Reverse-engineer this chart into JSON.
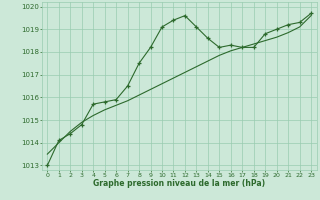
{
  "x": [
    0,
    1,
    2,
    3,
    4,
    5,
    6,
    7,
    8,
    9,
    10,
    11,
    12,
    13,
    14,
    15,
    16,
    17,
    18,
    19,
    20,
    21,
    22,
    23
  ],
  "y_main": [
    1013.0,
    1014.1,
    1014.4,
    1014.8,
    1015.7,
    1015.8,
    1015.9,
    1016.5,
    1017.5,
    1018.2,
    1019.1,
    1019.4,
    1019.6,
    1019.1,
    1018.6,
    1018.2,
    1018.3,
    1018.2,
    1018.2,
    1018.8,
    1019.0,
    1019.2,
    1019.3,
    1019.7
  ],
  "y_smooth": [
    1013.5,
    1014.0,
    1014.5,
    1014.9,
    1015.2,
    1015.45,
    1015.65,
    1015.85,
    1016.1,
    1016.35,
    1016.6,
    1016.85,
    1017.1,
    1017.35,
    1017.6,
    1017.85,
    1018.05,
    1018.2,
    1018.35,
    1018.5,
    1018.65,
    1018.85,
    1019.1,
    1019.6
  ],
  "line_color": "#2d6a2d",
  "bg_color": "#cce8d8",
  "grid_color": "#99ccb0",
  "xlabel": "Graphe pression niveau de la mer (hPa)",
  "ylim": [
    1013.0,
    1020.0
  ],
  "xlim": [
    0,
    23
  ],
  "yticks": [
    1013,
    1014,
    1015,
    1016,
    1017,
    1018,
    1019,
    1020
  ],
  "xticks": [
    0,
    1,
    2,
    3,
    4,
    5,
    6,
    7,
    8,
    9,
    10,
    11,
    12,
    13,
    14,
    15,
    16,
    17,
    18,
    19,
    20,
    21,
    22,
    23
  ]
}
